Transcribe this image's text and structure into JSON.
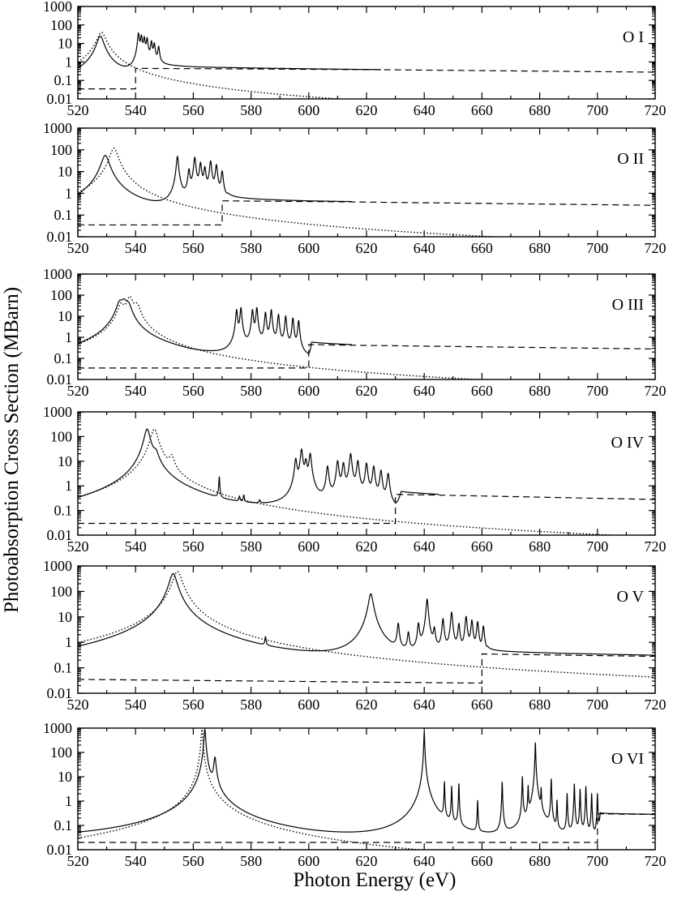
{
  "figure": {
    "ylabel": "Photoabsorption Cross Section (MBarn)",
    "xlabel": "Photon Energy (eV)"
  },
  "chart_data": [
    {
      "type": "line",
      "panel_label": "O I",
      "xlim": [
        520,
        720
      ],
      "ylim": [
        0.01,
        1000
      ],
      "yscale": "log",
      "x_ticks": [
        520,
        540,
        560,
        580,
        600,
        620,
        640,
        660,
        680,
        700,
        720
      ],
      "y_ticks": [
        0.01,
        0.1,
        1,
        10,
        100,
        1000
      ],
      "y_tick_labels": [
        "0.01",
        "0.1",
        "1",
        "10",
        "100",
        "1000"
      ],
      "baseline": 0.035,
      "edge": 540,
      "edge_jump_to": 0.45,
      "series": [
        {
          "style": "solid",
          "continuum": [
            [
              520,
              0.04
            ],
            [
              527,
              0.08
            ],
            [
              540,
              0.035
            ],
            [
              542,
              0.6
            ],
            [
              560,
              0.5
            ],
            [
              600,
              0.42
            ],
            [
              625,
              0.38
            ]
          ],
          "peaks": [
            [
              527.8,
              25,
              1.0
            ],
            [
              541,
              35,
              0.25
            ],
            [
              542,
              25,
              0.25
            ],
            [
              543,
              20,
              0.25
            ],
            [
              544,
              18,
              0.25
            ],
            [
              545.5,
              12,
              0.25
            ],
            [
              546.5,
              9,
              0.25
            ],
            [
              548,
              6,
              0.25
            ]
          ]
        },
        {
          "style": "dotted",
          "peaks": [
            [
              528.2,
              40,
              1.3
            ]
          ]
        },
        {
          "style": "dashed",
          "points": [
            [
              520,
              0.035
            ],
            [
              540,
              0.035
            ],
            [
              540,
              0.45
            ],
            [
              625,
              0.38
            ],
            [
              720,
              0.28
            ]
          ]
        }
      ]
    },
    {
      "type": "line",
      "panel_label": "O II",
      "xlim": [
        520,
        720
      ],
      "ylim": [
        0.01,
        1000
      ],
      "yscale": "log",
      "x_ticks": [
        520,
        540,
        560,
        580,
        600,
        620,
        640,
        660,
        680,
        700,
        720
      ],
      "y_ticks": [
        0.01,
        0.1,
        1,
        10,
        100,
        1000
      ],
      "y_tick_labels": [
        "0.01",
        "0.1",
        "1",
        "10",
        "100",
        "1000"
      ],
      "baseline": 0.035,
      "edge": 570,
      "edge_jump_to": 0.45,
      "series": [
        {
          "style": "solid",
          "continuum": [
            [
              520,
              0.04
            ],
            [
              529.5,
              0.1
            ],
            [
              550,
              0.06
            ],
            [
              570,
              0.05
            ],
            [
              572,
              0.5
            ],
            [
              600,
              0.42
            ],
            [
              615,
              0.4
            ]
          ],
          "peaks": [
            [
              529.5,
              55,
              1.2
            ],
            [
              554.5,
              50,
              0.3
            ],
            [
              558.5,
              12,
              0.3
            ],
            [
              560.5,
              45,
              0.3
            ],
            [
              562.5,
              25,
              0.3
            ],
            [
              564,
              15,
              0.3
            ],
            [
              566,
              30,
              0.3
            ],
            [
              568,
              20,
              0.3
            ],
            [
              570,
              10,
              0.3
            ]
          ]
        },
        {
          "style": "dotted",
          "peaks": [
            [
              532.5,
              120,
              1.2
            ]
          ]
        },
        {
          "style": "dashed",
          "points": [
            [
              520,
              0.035
            ],
            [
              570,
              0.035
            ],
            [
              570,
              0.45
            ],
            [
              615,
              0.4
            ],
            [
              720,
              0.28
            ]
          ]
        }
      ]
    },
    {
      "type": "line",
      "panel_label": "O III",
      "xlim": [
        520,
        720
      ],
      "ylim": [
        0.01,
        1000
      ],
      "yscale": "log",
      "x_ticks": [
        520,
        540,
        560,
        580,
        600,
        620,
        640,
        660,
        680,
        700,
        720
      ],
      "y_ticks": [
        0.01,
        0.1,
        1,
        10,
        100,
        1000
      ],
      "y_tick_labels": [
        "0.01",
        "0.1",
        "1",
        "10",
        "100",
        "1000"
      ],
      "baseline": 0.035,
      "edge": 600,
      "edge_jump_to": 0.45,
      "series": [
        {
          "style": "solid",
          "continuum": [
            [
              520,
              0.04
            ],
            [
              536,
              0.3
            ],
            [
              560,
              0.06
            ],
            [
              572,
              0.05
            ],
            [
              600,
              0.05
            ],
            [
              601,
              0.5
            ],
            [
              615,
              0.42
            ]
          ],
          "peaks": [
            [
              534.5,
              40,
              1.0
            ],
            [
              536,
              45,
              1.0
            ],
            [
              537.5,
              30,
              1.0
            ],
            [
              575,
              20,
              0.25
            ],
            [
              576.5,
              25,
              0.25
            ],
            [
              580.5,
              20,
              0.25
            ],
            [
              582,
              25,
              0.25
            ],
            [
              585,
              15,
              0.25
            ],
            [
              587,
              20,
              0.25
            ],
            [
              589.5,
              12,
              0.25
            ],
            [
              592,
              10,
              0.25
            ],
            [
              594.5,
              8,
              0.25
            ],
            [
              596.5,
              6,
              0.25
            ]
          ]
        },
        {
          "style": "dotted",
          "peaks": [
            [
              535,
              35,
              1.0
            ],
            [
              538,
              80,
              1.0
            ],
            [
              540.5,
              30,
              1.0
            ]
          ]
        },
        {
          "style": "dashed",
          "points": [
            [
              520,
              0.035
            ],
            [
              600,
              0.035
            ],
            [
              600,
              0.45
            ],
            [
              615,
              0.42
            ],
            [
              720,
              0.28
            ]
          ]
        }
      ]
    },
    {
      "type": "line",
      "panel_label": "O IV",
      "xlim": [
        520,
        720
      ],
      "ylim": [
        0.01,
        1000
      ],
      "yscale": "log",
      "x_ticks": [
        520,
        540,
        560,
        580,
        600,
        620,
        640,
        660,
        680,
        700,
        720
      ],
      "y_ticks": [
        0.01,
        0.1,
        1,
        10,
        100,
        1000
      ],
      "y_tick_labels": [
        "0.01",
        "0.1",
        "1",
        "10",
        "100",
        "1000"
      ],
      "baseline": 0.03,
      "edge": 630,
      "edge_jump_to": 0.45,
      "series": [
        {
          "style": "solid",
          "continuum": [
            [
              520,
              0.04
            ],
            [
              544,
              0.3
            ],
            [
              570,
              0.04
            ],
            [
              594,
              0.04
            ],
            [
              630,
              0.05
            ],
            [
              632,
              0.5
            ],
            [
              645,
              0.42
            ]
          ],
          "peaks": [
            [
              544,
              200,
              0.9
            ],
            [
              547,
              15,
              0.9
            ],
            [
              569,
              2,
              0.15
            ],
            [
              576,
              0.15,
              0.2
            ],
            [
              577.5,
              0.2,
              0.2
            ],
            [
              583,
              0.07,
              0.2
            ],
            [
              595.5,
              12,
              0.35
            ],
            [
              597.5,
              30,
              0.35
            ],
            [
              599,
              10,
              0.35
            ],
            [
              600.5,
              20,
              0.35
            ],
            [
              606.5,
              6,
              0.35
            ],
            [
              610,
              10,
              0.35
            ],
            [
              612,
              8,
              0.35
            ],
            [
              614.5,
              20,
              0.35
            ],
            [
              617,
              10,
              0.35
            ],
            [
              620,
              8,
              0.35
            ],
            [
              622.5,
              6,
              0.35
            ],
            [
              625,
              4,
              0.35
            ],
            [
              627.5,
              3,
              0.35
            ]
          ]
        },
        {
          "style": "dotted",
          "peaks": [
            [
              546.5,
              200,
              1.1
            ],
            [
              552.5,
              12,
              0.8
            ]
          ]
        },
        {
          "style": "dashed",
          "points": [
            [
              520,
              0.03
            ],
            [
              630,
              0.03
            ],
            [
              630,
              0.45
            ],
            [
              645,
              0.42
            ],
            [
              720,
              0.28
            ]
          ]
        }
      ]
    },
    {
      "type": "line",
      "panel_label": "O V",
      "xlim": [
        520,
        720
      ],
      "ylim": [
        0.01,
        1000
      ],
      "yscale": "log",
      "x_ticks": [
        520,
        540,
        560,
        580,
        600,
        620,
        640,
        660,
        680,
        700,
        720
      ],
      "y_ticks": [
        0.01,
        0.1,
        1,
        10,
        100,
        1000
      ],
      "y_tick_labels": [
        "0.01",
        "0.1",
        "1",
        "10",
        "100",
        "1000"
      ],
      "baseline": 0.025,
      "edge": 660,
      "edge_jump_to": 0.35,
      "series": [
        {
          "style": "solid",
          "continuum": [
            [
              520,
              0.04
            ],
            [
              553,
              0.3
            ],
            [
              585,
              0.05
            ],
            [
              620,
              0.06
            ],
            [
              660,
              0.05
            ],
            [
              662,
              0.35
            ],
            [
              720,
              0.28
            ]
          ],
          "peaks": [
            [
              553,
              500,
              1.2
            ],
            [
              585,
              0.9,
              0.2
            ],
            [
              621.5,
              80,
              0.7
            ],
            [
              631,
              5,
              0.3
            ],
            [
              634.5,
              2,
              0.3
            ],
            [
              638,
              5,
              0.3
            ],
            [
              641,
              50,
              0.3
            ],
            [
              643.5,
              3,
              0.3
            ],
            [
              646.5,
              8,
              0.3
            ],
            [
              649.5,
              15,
              0.3
            ],
            [
              652,
              5,
              0.3
            ],
            [
              654.5,
              10,
              0.3
            ],
            [
              656.5,
              7,
              0.3
            ],
            [
              658.5,
              6,
              0.3
            ],
            [
              660.5,
              4,
              0.3
            ]
          ]
        },
        {
          "style": "dotted",
          "peaks": [
            [
              554.5,
              600,
              1.4
            ]
          ]
        },
        {
          "style": "dashed",
          "points": [
            [
              520,
              0.035
            ],
            [
              660,
              0.025
            ],
            [
              660,
              0.35
            ],
            [
              720,
              0.28
            ]
          ]
        }
      ]
    },
    {
      "type": "line",
      "panel_label": "O VI",
      "xlim": [
        520,
        720
      ],
      "ylim": [
        0.01,
        1000
      ],
      "yscale": "log",
      "x_ticks": [
        520,
        540,
        560,
        580,
        600,
        620,
        640,
        660,
        680,
        700,
        720
      ],
      "y_ticks": [
        0.01,
        0.1,
        1,
        10,
        100,
        1000
      ],
      "y_tick_labels": [
        "0.01",
        "0.1",
        "1",
        "10",
        "100",
        "1000"
      ],
      "baseline": 0.02,
      "edge": 700,
      "edge_jump_to": 0.3,
      "series": [
        {
          "style": "solid",
          "continuum": [
            [
              520,
              0.02
            ],
            [
              560,
              0.018
            ],
            [
              600,
              0.012
            ],
            [
              640,
              0.012
            ],
            [
              700,
              0.012
            ],
            [
              701,
              0.3
            ],
            [
              720,
              0.28
            ]
          ],
          "peaks": [
            [
              564,
              900,
              0.25
            ],
            [
              567.5,
              60,
              0.35
            ],
            [
              640,
              700,
              0.12
            ],
            [
              647,
              6,
              0.1
            ],
            [
              649.5,
              4,
              0.1
            ],
            [
              652,
              5,
              0.1
            ],
            [
              658.5,
              1,
              0.1
            ],
            [
              667,
              6,
              0.1
            ],
            [
              674,
              10,
              0.1
            ],
            [
              676,
              4,
              0.1
            ],
            [
              678.5,
              250,
              0.1
            ],
            [
              680.5,
              3,
              0.1
            ],
            [
              684,
              8,
              0.1
            ],
            [
              686,
              1,
              0.1
            ],
            [
              689.5,
              2,
              0.1
            ],
            [
              692,
              5,
              0.1
            ],
            [
              694,
              3,
              0.1
            ],
            [
              696,
              4,
              0.1
            ],
            [
              698,
              2,
              0.1
            ],
            [
              700,
              2,
              0.1
            ]
          ]
        },
        {
          "style": "dotted",
          "peaks": [
            [
              563,
              900,
              0.25
            ]
          ]
        },
        {
          "style": "dashed",
          "points": [
            [
              520,
              0.02
            ],
            [
              700,
              0.02
            ],
            [
              700,
              0.3
            ],
            [
              720,
              0.28
            ]
          ]
        }
      ]
    }
  ]
}
